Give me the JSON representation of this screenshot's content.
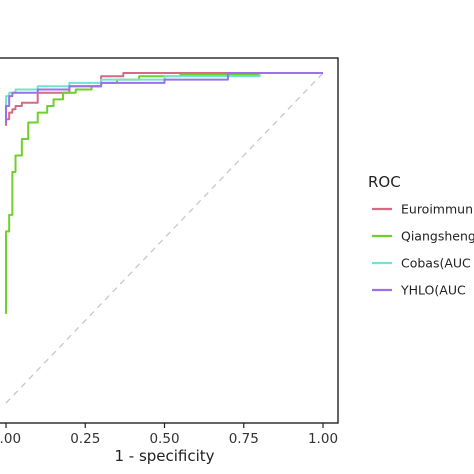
{
  "chart_data": {
    "type": "line",
    "title": "",
    "xlabel": "1 - specificity",
    "ylabel": "",
    "xlim": [
      0,
      1
    ],
    "ylim": [
      0,
      1
    ],
    "x_ticks": [
      "0.00",
      "0.25",
      "0.50",
      "0.75",
      "1.00"
    ],
    "x_tick_values": [
      0,
      0.25,
      0.5,
      0.75,
      1
    ],
    "grid": false,
    "diagonal_reference": true,
    "legend": {
      "title": "ROC",
      "placement": "right"
    },
    "series": [
      {
        "name": "Euroimmun",
        "color": "#d36b84",
        "points": [
          [
            0,
            0.84
          ],
          [
            0.01,
            0.86
          ],
          [
            0.02,
            0.88
          ],
          [
            0.03,
            0.89
          ],
          [
            0.05,
            0.9
          ],
          [
            0.1,
            0.91
          ],
          [
            0.2,
            0.94
          ],
          [
            0.3,
            0.96
          ],
          [
            0.37,
            0.99
          ],
          [
            0.47,
            1.0
          ],
          [
            0.97,
            1.0
          ],
          [
            1.0,
            1.0
          ]
        ]
      },
      {
        "name": "Qiangsheng",
        "color": "#6fcf2c",
        "points": [
          [
            0,
            0.27
          ],
          [
            0.0,
            0.5
          ],
          [
            0.01,
            0.52
          ],
          [
            0.02,
            0.57
          ],
          [
            0.02,
            0.63
          ],
          [
            0.03,
            0.7
          ],
          [
            0.05,
            0.75
          ],
          [
            0.07,
            0.8
          ],
          [
            0.1,
            0.85
          ],
          [
            0.13,
            0.88
          ],
          [
            0.15,
            0.9
          ],
          [
            0.18,
            0.92
          ],
          [
            0.22,
            0.94
          ],
          [
            0.27,
            0.95
          ],
          [
            0.3,
            0.96
          ],
          [
            0.35,
            0.97
          ],
          [
            0.42,
            0.98
          ],
          [
            0.55,
            0.99
          ],
          [
            0.8,
            0.995
          ],
          [
            1.0,
            1.0
          ]
        ]
      },
      {
        "name": "Cobas",
        "color": "#72e3cf",
        "points": [
          [
            0,
            0.9
          ],
          [
            0.01,
            0.93
          ],
          [
            0.03,
            0.94
          ],
          [
            0.1,
            0.95
          ],
          [
            0.2,
            0.96
          ],
          [
            0.3,
            0.97
          ],
          [
            0.5,
            0.98
          ],
          [
            0.8,
            0.99
          ],
          [
            1.0,
            1.0
          ]
        ]
      },
      {
        "name": "YHLO",
        "color": "#9a72e8",
        "points": [
          [
            0,
            0.85
          ],
          [
            0.01,
            0.9
          ],
          [
            0.02,
            0.93
          ],
          [
            0.05,
            0.94
          ],
          [
            0.1,
            0.94
          ],
          [
            0.2,
            0.95
          ],
          [
            0.3,
            0.96
          ],
          [
            0.5,
            0.97
          ],
          [
            0.7,
            0.98
          ],
          [
            0.95,
            1.0
          ],
          [
            1.0,
            1.0
          ]
        ]
      }
    ],
    "legend_labels": [
      "Euroimmun",
      "Qiangsheng",
      "Cobas(AUC",
      "YHLO(AUC"
    ]
  }
}
